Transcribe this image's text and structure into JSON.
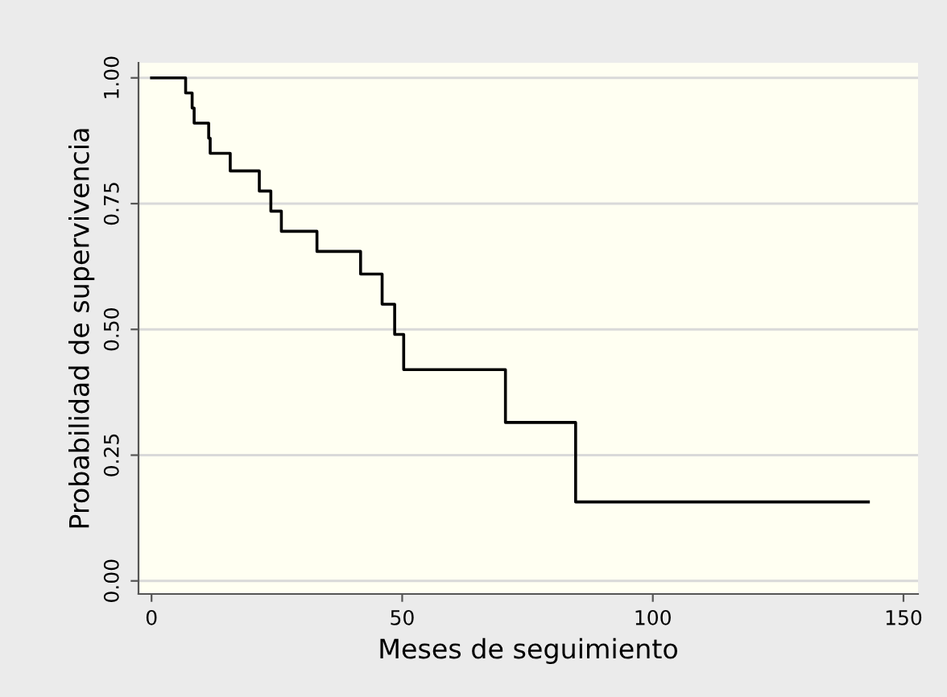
{
  "chart_data": {
    "type": "step",
    "xlabel": "Meses de seguimiento",
    "ylabel": "Probabilidad de supervivencia",
    "x": [
      0,
      6.8,
      8.1,
      8.5,
      11.4,
      11.7,
      15.7,
      21.5,
      23.8,
      25.9,
      33.0,
      41.7,
      46.0,
      48.5,
      50.3,
      70.6,
      84.6,
      143
    ],
    "series": [
      {
        "color": "#000000",
        "values": [
          1.0,
          0.97,
          0.94,
          0.91,
          0.88,
          0.85,
          0.815,
          0.775,
          0.735,
          0.695,
          0.655,
          0.61,
          0.55,
          0.49,
          0.42,
          0.315,
          0.157,
          0.157
        ]
      }
    ],
    "xlim": [
      -2.6,
      152.9
    ],
    "ylim": [
      -0.026,
      1.03
    ],
    "xticks": [
      0,
      50,
      100,
      150
    ],
    "yticks": [
      {
        "value": 0,
        "label": "0.00"
      },
      {
        "value": 0.25,
        "label": "0.25"
      },
      {
        "value": 0.5,
        "label": "0.50"
      },
      {
        "value": 0.75,
        "label": "0.75"
      },
      {
        "value": 1,
        "label": "1.00"
      }
    ],
    "grid": "y",
    "legend": false
  }
}
